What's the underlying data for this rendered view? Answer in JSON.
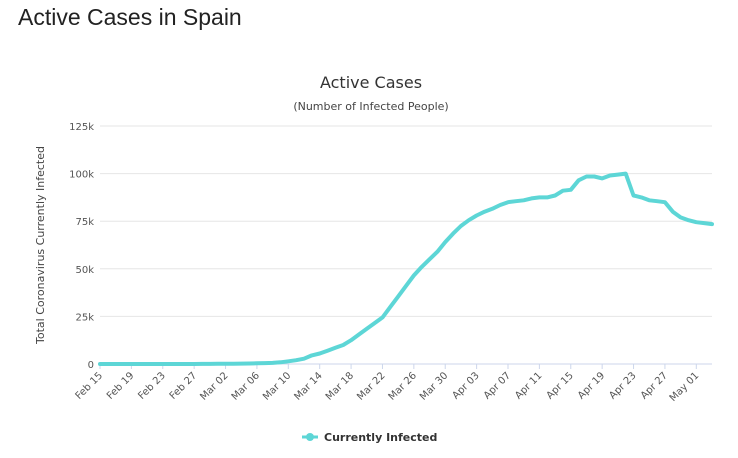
{
  "page": {
    "heading": "Active Cases in Spain"
  },
  "chart_data": {
    "type": "line",
    "title": "Active Cases",
    "subtitle": "(Number of Infected People)",
    "ylabel": "Total Coronavirus Currently Infected",
    "xlabel": "",
    "ylim": [
      0,
      125000
    ],
    "yticks": [
      0,
      25000,
      50000,
      75000,
      100000,
      125000
    ],
    "ytick_labels": [
      "0",
      "25k",
      "50k",
      "75k",
      "100k",
      "125k"
    ],
    "xtick_labels": [
      "Feb 15",
      "Feb 19",
      "Feb 23",
      "Feb 27",
      "Mar 02",
      "Mar 06",
      "Mar 10",
      "Mar 14",
      "Mar 18",
      "Mar 22",
      "Mar 26",
      "Mar 30",
      "Apr 03",
      "Apr 07",
      "Apr 11",
      "Apr 15",
      "Apr 19",
      "Apr 23",
      "Apr 27",
      "May 01"
    ],
    "grid": true,
    "legend": "bottom-center",
    "series": [
      {
        "name": "Currently Infected",
        "color": "#5dd6d6",
        "x": [
          "Feb 15",
          "Feb 16",
          "Feb 17",
          "Feb 18",
          "Feb 19",
          "Feb 20",
          "Feb 21",
          "Feb 22",
          "Feb 23",
          "Feb 24",
          "Feb 25",
          "Feb 26",
          "Feb 27",
          "Feb 28",
          "Feb 29",
          "Mar 01",
          "Mar 02",
          "Mar 03",
          "Mar 04",
          "Mar 05",
          "Mar 06",
          "Mar 07",
          "Mar 08",
          "Mar 09",
          "Mar 10",
          "Mar 11",
          "Mar 12",
          "Mar 13",
          "Mar 14",
          "Mar 15",
          "Mar 16",
          "Mar 17",
          "Mar 18",
          "Mar 19",
          "Mar 20",
          "Mar 21",
          "Mar 22",
          "Mar 23",
          "Mar 24",
          "Mar 25",
          "Mar 26",
          "Mar 27",
          "Mar 28",
          "Mar 29",
          "Mar 30",
          "Mar 31",
          "Apr 01",
          "Apr 02",
          "Apr 03",
          "Apr 04",
          "Apr 05",
          "Apr 06",
          "Apr 07",
          "Apr 08",
          "Apr 09",
          "Apr 10",
          "Apr 11",
          "Apr 12",
          "Apr 13",
          "Apr 14",
          "Apr 15",
          "Apr 16",
          "Apr 17",
          "Apr 18",
          "Apr 19",
          "Apr 20",
          "Apr 21",
          "Apr 22",
          "Apr 23",
          "Apr 24",
          "Apr 25",
          "Apr 26",
          "Apr 27",
          "Apr 28",
          "Apr 29",
          "Apr 30",
          "May 01",
          "May 02",
          "May 03"
        ],
        "values": [
          2,
          2,
          2,
          2,
          2,
          2,
          2,
          2,
          2,
          2,
          6,
          10,
          20,
          30,
          50,
          80,
          110,
          150,
          200,
          250,
          350,
          450,
          600,
          900,
          1400,
          2000,
          2800,
          4500,
          5500,
          7000,
          8500,
          10000,
          12500,
          15500,
          18500,
          21500,
          24500,
          30000,
          35500,
          41000,
          46500,
          51000,
          55000,
          59000,
          64000,
          68500,
          72500,
          75500,
          78000,
          80000,
          81500,
          83500,
          85000,
          85500,
          86000,
          87000,
          87500,
          87500,
          88500,
          91000,
          91500,
          96500,
          98500,
          98500,
          97500,
          99000,
          99500,
          100000,
          88500,
          87500,
          86000,
          85500,
          85000,
          80000,
          77000,
          75500,
          74500,
          74000,
          73500
        ]
      }
    ]
  }
}
